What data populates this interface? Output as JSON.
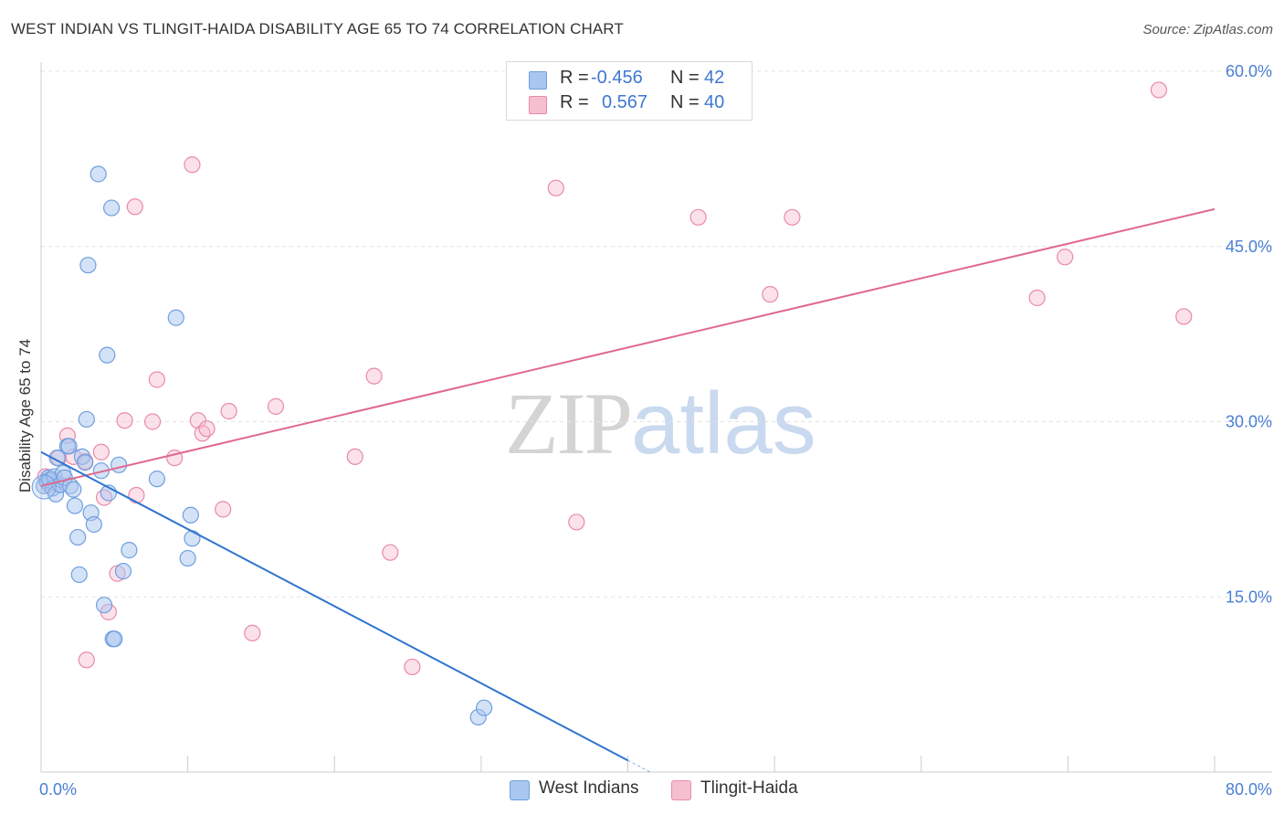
{
  "header": {
    "title": "WEST INDIAN VS TLINGIT-HAIDA DISABILITY AGE 65 TO 74 CORRELATION CHART",
    "source": "Source: ZipAtlas.com"
  },
  "legend": {
    "rows": [
      {
        "r_label": "R =",
        "r_value": "-0.456",
        "n_label": "N =",
        "n_value": "42"
      },
      {
        "r_label": "R =",
        "r_value": "0.567",
        "n_label": "N =",
        "n_value": "40"
      }
    ]
  },
  "bottom_legend": {
    "west_indians": "West Indians",
    "tlingit_haida": "Tlingit-Haida"
  },
  "watermark": {
    "zip": "ZIP",
    "atlas": "atlas"
  },
  "colors": {
    "blue_fill": "#a9c6f0",
    "blue_stroke": "#6f9fdf",
    "blue_line": "#2f74d0",
    "pink_fill": "#f6bfd0",
    "pink_stroke": "#e98aa8",
    "pink_line": "#e0688e",
    "grid": "#e3e3e3",
    "tick_text": "#4a7fd4"
  },
  "chart_data": {
    "type": "scatter",
    "title": "WEST INDIAN VS TLINGIT-HAIDA DISABILITY AGE 65 TO 74 CORRELATION CHART",
    "xlabel": "",
    "ylabel": "Disability Age 65 to 74",
    "xlim": [
      0,
      80
    ],
    "ylim": [
      0,
      60
    ],
    "x_tick_labels": [
      "0.0%",
      "80.0%"
    ],
    "y_ticks": [
      15,
      30,
      45,
      60
    ],
    "y_tick_labels": [
      "15.0%",
      "30.0%",
      "45.0%",
      "60.0%"
    ],
    "grid": true,
    "series": [
      {
        "name": "West Indians",
        "r": -0.456,
        "n": 42,
        "trend": {
          "x": [
            0,
            40
          ],
          "y": [
            27.4,
            1.0
          ],
          "dashed_extension_to_x": 41.5
        },
        "points": [
          [
            0.2,
            24.5
          ],
          [
            0.4,
            24.9
          ],
          [
            0.5,
            25.2
          ],
          [
            0.6,
            25.0
          ],
          [
            0.8,
            24.3
          ],
          [
            1.0,
            23.8
          ],
          [
            0.9,
            25.3
          ],
          [
            1.1,
            26.9
          ],
          [
            1.3,
            24.6
          ],
          [
            1.5,
            25.6
          ],
          [
            1.6,
            25.2
          ],
          [
            1.8,
            27.9
          ],
          [
            2.0,
            24.5
          ],
          [
            2.2,
            24.2
          ],
          [
            2.3,
            22.8
          ],
          [
            2.5,
            20.1
          ],
          [
            2.6,
            16.9
          ],
          [
            2.8,
            27.0
          ],
          [
            3.0,
            26.5
          ],
          [
            3.1,
            30.2
          ],
          [
            3.2,
            43.4
          ],
          [
            3.4,
            22.2
          ],
          [
            3.6,
            21.2
          ],
          [
            3.9,
            51.2
          ],
          [
            4.1,
            25.8
          ],
          [
            4.3,
            14.3
          ],
          [
            4.5,
            35.7
          ],
          [
            4.8,
            48.3
          ],
          [
            4.9,
            11.4
          ],
          [
            5.0,
            11.4
          ],
          [
            5.3,
            26.3
          ],
          [
            5.6,
            17.2
          ],
          [
            6.0,
            19.0
          ],
          [
            4.6,
            23.9
          ],
          [
            7.9,
            25.1
          ],
          [
            9.2,
            38.9
          ],
          [
            10.0,
            18.3
          ],
          [
            10.2,
            22.0
          ],
          [
            10.3,
            20.0
          ],
          [
            29.8,
            4.7
          ],
          [
            30.2,
            5.5
          ],
          [
            1.9,
            27.9
          ]
        ]
      },
      {
        "name": "Tlingit-Haida",
        "r": 0.567,
        "n": 40,
        "trend": {
          "x": [
            0,
            80
          ],
          "y": [
            24.5,
            48.2
          ]
        },
        "points": [
          [
            0.3,
            25.3
          ],
          [
            0.5,
            24.6
          ],
          [
            1.0,
            24.8
          ],
          [
            1.2,
            26.9
          ],
          [
            1.8,
            28.8
          ],
          [
            2.2,
            27.0
          ],
          [
            3.0,
            26.6
          ],
          [
            3.1,
            9.6
          ],
          [
            4.1,
            27.4
          ],
          [
            4.3,
            23.5
          ],
          [
            4.6,
            13.7
          ],
          [
            5.2,
            17.0
          ],
          [
            5.7,
            30.1
          ],
          [
            6.4,
            48.4
          ],
          [
            6.5,
            23.7
          ],
          [
            7.6,
            30.0
          ],
          [
            7.9,
            33.6
          ],
          [
            9.1,
            26.9
          ],
          [
            10.3,
            52.0
          ],
          [
            10.7,
            30.1
          ],
          [
            11.0,
            29.0
          ],
          [
            11.3,
            29.4
          ],
          [
            12.4,
            22.5
          ],
          [
            12.8,
            30.9
          ],
          [
            14.4,
            11.9
          ],
          [
            16.0,
            31.3
          ],
          [
            21.4,
            27.0
          ],
          [
            22.7,
            33.9
          ],
          [
            23.8,
            18.8
          ],
          [
            25.3,
            9.0
          ],
          [
            35.1,
            50.0
          ],
          [
            36.5,
            21.4
          ],
          [
            44.8,
            47.5
          ],
          [
            49.7,
            40.9
          ],
          [
            51.2,
            47.5
          ],
          [
            67.9,
            40.6
          ],
          [
            69.8,
            44.1
          ],
          [
            76.2,
            58.4
          ],
          [
            77.9,
            39.0
          ],
          [
            0.7,
            25.1
          ]
        ]
      }
    ]
  }
}
